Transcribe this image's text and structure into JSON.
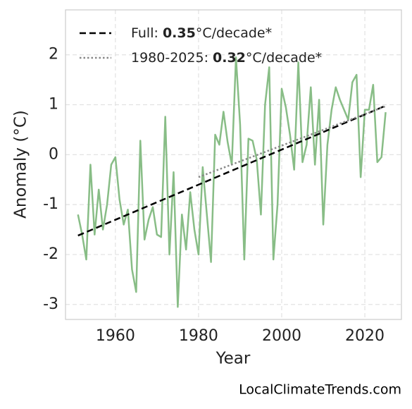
{
  "chart_data": {
    "type": "line",
    "xlabel": "Year",
    "ylabel": "Anomaly (°C)",
    "watermark": "LocalClimateTrends.com",
    "xlim": [
      1948,
      2028.8
    ],
    "ylim": [
      -3.3,
      2.9
    ],
    "xticks": [
      1960,
      1980,
      2000,
      2020
    ],
    "yticks": [
      -3,
      -2,
      -1,
      0,
      1,
      2
    ],
    "grid": true,
    "legend_position": "upper left",
    "series": [
      {
        "color": "#88bd86",
        "style": "solid",
        "x": [
          1951,
          1952,
          1953,
          1954,
          1955,
          1956,
          1957,
          1958,
          1959,
          1960,
          1961,
          1962,
          1963,
          1964,
          1965,
          1966,
          1967,
          1968,
          1969,
          1970,
          1971,
          1972,
          1973,
          1974,
          1975,
          1976,
          1977,
          1978,
          1979,
          1980,
          1981,
          1982,
          1983,
          1984,
          1985,
          1986,
          1987,
          1988,
          1989,
          1990,
          1991,
          1992,
          1993,
          1994,
          1995,
          1996,
          1997,
          1998,
          1999,
          2000,
          2001,
          2002,
          2003,
          2004,
          2005,
          2006,
          2007,
          2008,
          2009,
          2010,
          2011,
          2012,
          2013,
          2014,
          2015,
          2016,
          2017,
          2018,
          2019,
          2020,
          2021,
          2022,
          2023,
          2024,
          2025
        ],
        "values": [
          -1.2,
          -1.6,
          -2.1,
          -0.2,
          -1.6,
          -0.7,
          -1.5,
          -1.0,
          -0.2,
          -0.05,
          -0.9,
          -1.4,
          -1.1,
          -2.3,
          -2.75,
          0.28,
          -1.7,
          -1.3,
          -1.05,
          -1.6,
          -1.65,
          0.76,
          -2.0,
          -0.35,
          -3.05,
          -1.2,
          -1.9,
          -0.75,
          -1.5,
          -2.0,
          -0.25,
          -1.2,
          -2.15,
          0.4,
          0.2,
          0.86,
          0.25,
          -0.2,
          1.95,
          0.6,
          -2.1,
          0.32,
          0.28,
          -0.1,
          -1.2,
          1.0,
          1.75,
          -2.1,
          -1.0,
          1.32,
          0.95,
          0.4,
          -0.3,
          1.85,
          -0.15,
          0.2,
          1.35,
          -0.2,
          1.1,
          -1.4,
          0.2,
          0.9,
          1.35,
          1.1,
          0.9,
          0.7,
          1.45,
          1.6,
          -0.45,
          0.9,
          0.9,
          1.4,
          -0.15,
          -0.05,
          0.85
        ]
      },
      {
        "name": "Full: 0.35°C/decade*",
        "color": "#000000",
        "style": "dashed",
        "x": [
          1951,
          2025
        ],
        "values": [
          -1.62,
          0.98
        ]
      },
      {
        "name": "1980-2025: 0.32°C/decade*",
        "color": "#888888",
        "style": "dotted",
        "x": [
          1980,
          2025
        ],
        "values": [
          -0.45,
          0.97
        ]
      }
    ]
  }
}
